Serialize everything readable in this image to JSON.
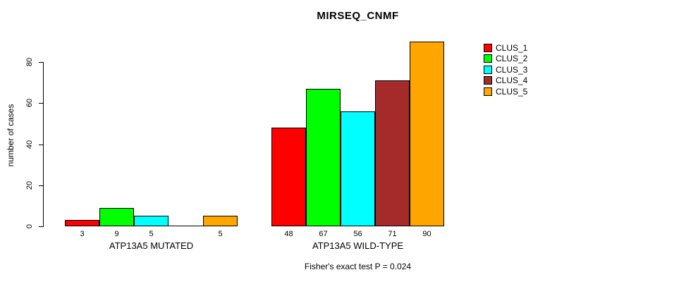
{
  "chart_data": {
    "type": "bar",
    "title": "MIRSEQ_CNMF",
    "xlabel": "",
    "ylabel": "number of cases",
    "ylim": [
      0,
      90
    ],
    "yticks": [
      0,
      20,
      40,
      60,
      80
    ],
    "grid": false,
    "legend_position": "right-outside",
    "categories": [
      "ATP13A5 MUTATED",
      "ATP13A5 WILD-TYPE"
    ],
    "series": [
      {
        "name": "CLUS_1",
        "color": "#FF0000",
        "values": [
          3,
          48
        ]
      },
      {
        "name": "CLUS_2",
        "color": "#00FF00",
        "values": [
          9,
          67
        ]
      },
      {
        "name": "CLUS_3",
        "color": "#00FFFF",
        "values": [
          5,
          56
        ]
      },
      {
        "name": "CLUS_4",
        "color": "#A52A2A",
        "values": [
          0,
          71
        ]
      },
      {
        "name": "CLUS_5",
        "color": "#FFA500",
        "values": [
          5,
          90
        ]
      }
    ],
    "bar_labels": [
      [
        "3",
        "9",
        "5",
        "",
        "5"
      ],
      [
        "48",
        "67",
        "56",
        "71",
        "90"
      ]
    ],
    "annotation": "Fisher's exact test P = 0.024"
  }
}
